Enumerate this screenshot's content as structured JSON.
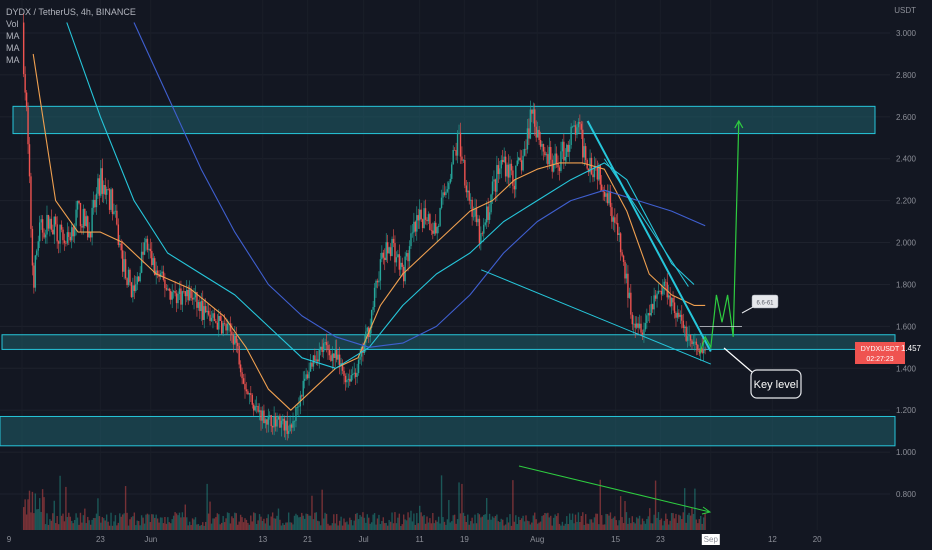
{
  "header": {
    "symbol_line": "DYDX / TetherUS, 4h, BINANCE",
    "indicators": [
      "Vol",
      "MA",
      "MA",
      "MA"
    ]
  },
  "price_axis": {
    "unit_label": "USDT",
    "current_price_label": "1.457",
    "current_symbol_label": "DYDXUSDT",
    "countdown_label": "02:27:23"
  },
  "annotations": {
    "key_level_label": "Key level",
    "small_box_label": "6.6-61"
  },
  "colors": {
    "background": "#131722",
    "zone_fill": "#1f5e6a",
    "zone_border": "#26c6da",
    "candle_up": "#26a69a",
    "candle_down": "#ef5350",
    "ma_fast": "#f0a050",
    "ma_mid": "#26c6da",
    "ma_slow": "#3f5fd0",
    "trendline": "#26c6da",
    "projection": "#2ecc40",
    "price_tag": "#ef5350"
  },
  "chart_data": {
    "type": "candlestick",
    "title": "DYDX / TetherUS, 4h, BINANCE",
    "ylabel": "USDT",
    "ylim": [
      0.7,
      3.05
    ],
    "y_ticks": [
      3.0,
      2.8,
      2.6,
      2.4,
      2.2,
      2.0,
      1.8,
      1.6,
      1.4,
      1.2,
      1.0,
      0.8
    ],
    "y_tick_labels": [
      "3.000",
      "2.800",
      "2.600",
      "2.400",
      "2.200",
      "2.000",
      "1.800",
      "1.600",
      "1.400",
      "1.200",
      "1.000",
      "0.800"
    ],
    "x_ticks": [
      {
        "label": "9",
        "t": 0
      },
      {
        "label": "23",
        "t": 14
      },
      {
        "label": "Jun",
        "t": 23
      },
      {
        "label": "13",
        "t": 43
      },
      {
        "label": "21",
        "t": 51
      },
      {
        "label": "Jul",
        "t": 61
      },
      {
        "label": "11",
        "t": 71
      },
      {
        "label": "19",
        "t": 79
      },
      {
        "label": "Aug",
        "t": 92
      },
      {
        "label": "15",
        "t": 106
      },
      {
        "label": "23",
        "t": 114
      },
      {
        "label": "Sep",
        "t": 123
      },
      {
        "label": "12",
        "t": 134
      },
      {
        "label": "20",
        "t": 142
      }
    ],
    "price_path": [
      {
        "t": 0,
        "p": 3.05
      },
      {
        "t": 1,
        "p": 2.5
      },
      {
        "t": 2,
        "p": 1.8
      },
      {
        "t": 3,
        "p": 2.05
      },
      {
        "t": 5,
        "p": 2.1
      },
      {
        "t": 8,
        "p": 2.0
      },
      {
        "t": 10,
        "p": 2.15
      },
      {
        "t": 12,
        "p": 2.05
      },
      {
        "t": 14,
        "p": 2.3
      },
      {
        "t": 16,
        "p": 2.2
      },
      {
        "t": 18,
        "p": 1.9
      },
      {
        "t": 20,
        "p": 1.75
      },
      {
        "t": 22,
        "p": 2.0
      },
      {
        "t": 24,
        "p": 1.85
      },
      {
        "t": 27,
        "p": 1.75
      },
      {
        "t": 30,
        "p": 1.75
      },
      {
        "t": 33,
        "p": 1.65
      },
      {
        "t": 36,
        "p": 1.6
      },
      {
        "t": 38,
        "p": 1.55
      },
      {
        "t": 40,
        "p": 1.3
      },
      {
        "t": 42,
        "p": 1.2
      },
      {
        "t": 44,
        "p": 1.15
      },
      {
        "t": 46,
        "p": 1.15
      },
      {
        "t": 48,
        "p": 1.1
      },
      {
        "t": 50,
        "p": 1.3
      },
      {
        "t": 52,
        "p": 1.45
      },
      {
        "t": 54,
        "p": 1.5
      },
      {
        "t": 56,
        "p": 1.45
      },
      {
        "t": 58,
        "p": 1.35
      },
      {
        "t": 60,
        "p": 1.4
      },
      {
        "t": 62,
        "p": 1.6
      },
      {
        "t": 64,
        "p": 1.9
      },
      {
        "t": 66,
        "p": 2.0
      },
      {
        "t": 68,
        "p": 1.85
      },
      {
        "t": 70,
        "p": 2.05
      },
      {
        "t": 72,
        "p": 2.15
      },
      {
        "t": 74,
        "p": 2.05
      },
      {
        "t": 76,
        "p": 2.3
      },
      {
        "t": 78,
        "p": 2.5
      },
      {
        "t": 80,
        "p": 2.2
      },
      {
        "t": 82,
        "p": 2.0
      },
      {
        "t": 84,
        "p": 2.25
      },
      {
        "t": 86,
        "p": 2.4
      },
      {
        "t": 88,
        "p": 2.3
      },
      {
        "t": 90,
        "p": 2.45
      },
      {
        "t": 91,
        "p": 2.65
      },
      {
        "t": 93,
        "p": 2.45
      },
      {
        "t": 95,
        "p": 2.35
      },
      {
        "t": 97,
        "p": 2.45
      },
      {
        "t": 99,
        "p": 2.55
      },
      {
        "t": 101,
        "p": 2.4
      },
      {
        "t": 103,
        "p": 2.35
      },
      {
        "t": 105,
        "p": 2.2
      },
      {
        "t": 107,
        "p": 1.95
      },
      {
        "t": 109,
        "p": 1.65
      },
      {
        "t": 111,
        "p": 1.6
      },
      {
        "t": 113,
        "p": 1.75
      },
      {
        "t": 115,
        "p": 1.8
      },
      {
        "t": 117,
        "p": 1.65
      },
      {
        "t": 119,
        "p": 1.55
      },
      {
        "t": 121,
        "p": 1.46
      },
      {
        "t": 122,
        "p": 1.47
      }
    ],
    "moving_averages": [
      {
        "key": "ma_fast",
        "points": [
          {
            "t": 2,
            "p": 2.9
          },
          {
            "t": 6,
            "p": 2.2
          },
          {
            "t": 10,
            "p": 2.05
          },
          {
            "t": 14,
            "p": 2.05
          },
          {
            "t": 18,
            "p": 2.0
          },
          {
            "t": 24,
            "p": 1.85
          },
          {
            "t": 30,
            "p": 1.78
          },
          {
            "t": 36,
            "p": 1.65
          },
          {
            "t": 40,
            "p": 1.5
          },
          {
            "t": 44,
            "p": 1.3
          },
          {
            "t": 48,
            "p": 1.2
          },
          {
            "t": 52,
            "p": 1.3
          },
          {
            "t": 56,
            "p": 1.4
          },
          {
            "t": 60,
            "p": 1.45
          },
          {
            "t": 64,
            "p": 1.7
          },
          {
            "t": 68,
            "p": 1.85
          },
          {
            "t": 72,
            "p": 1.95
          },
          {
            "t": 76,
            "p": 2.05
          },
          {
            "t": 80,
            "p": 2.15
          },
          {
            "t": 84,
            "p": 2.2
          },
          {
            "t": 88,
            "p": 2.3
          },
          {
            "t": 92,
            "p": 2.35
          },
          {
            "t": 96,
            "p": 2.38
          },
          {
            "t": 100,
            "p": 2.38
          },
          {
            "t": 104,
            "p": 2.35
          },
          {
            "t": 108,
            "p": 2.15
          },
          {
            "t": 112,
            "p": 1.85
          },
          {
            "t": 116,
            "p": 1.75
          },
          {
            "t": 120,
            "p": 1.7
          },
          {
            "t": 122,
            "p": 1.7
          }
        ]
      },
      {
        "key": "ma_mid",
        "points": [
          {
            "t": 8,
            "p": 3.05
          },
          {
            "t": 14,
            "p": 2.6
          },
          {
            "t": 20,
            "p": 2.2
          },
          {
            "t": 26,
            "p": 1.95
          },
          {
            "t": 32,
            "p": 1.85
          },
          {
            "t": 38,
            "p": 1.75
          },
          {
            "t": 44,
            "p": 1.6
          },
          {
            "t": 50,
            "p": 1.45
          },
          {
            "t": 56,
            "p": 1.4
          },
          {
            "t": 62,
            "p": 1.5
          },
          {
            "t": 68,
            "p": 1.7
          },
          {
            "t": 74,
            "p": 1.85
          },
          {
            "t": 80,
            "p": 1.95
          },
          {
            "t": 86,
            "p": 2.1
          },
          {
            "t": 92,
            "p": 2.2
          },
          {
            "t": 98,
            "p": 2.3
          },
          {
            "t": 104,
            "p": 2.38
          },
          {
            "t": 108,
            "p": 2.3
          },
          {
            "t": 112,
            "p": 2.1
          },
          {
            "t": 116,
            "p": 1.9
          },
          {
            "t": 120,
            "p": 1.8
          }
        ]
      },
      {
        "key": "ma_slow",
        "points": [
          {
            "t": 20,
            "p": 3.05
          },
          {
            "t": 26,
            "p": 2.7
          },
          {
            "t": 32,
            "p": 2.35
          },
          {
            "t": 38,
            "p": 2.05
          },
          {
            "t": 44,
            "p": 1.8
          },
          {
            "t": 50,
            "p": 1.65
          },
          {
            "t": 56,
            "p": 1.55
          },
          {
            "t": 62,
            "p": 1.5
          },
          {
            "t": 68,
            "p": 1.52
          },
          {
            "t": 74,
            "p": 1.6
          },
          {
            "t": 80,
            "p": 1.75
          },
          {
            "t": 86,
            "p": 1.95
          },
          {
            "t": 92,
            "p": 2.1
          },
          {
            "t": 98,
            "p": 2.2
          },
          {
            "t": 104,
            "p": 2.25
          },
          {
            "t": 110,
            "p": 2.2
          },
          {
            "t": 116,
            "p": 2.15
          },
          {
            "t": 122,
            "p": 2.08
          }
        ]
      }
    ],
    "zones": [
      {
        "name": "upper-zone",
        "low": 2.52,
        "high": 2.65
      },
      {
        "name": "key-level-zone",
        "low": 1.49,
        "high": 1.56
      },
      {
        "name": "lower-zone",
        "low": 1.03,
        "high": 1.17
      }
    ],
    "trendlines": [
      {
        "name": "descending-resistance",
        "from": {
          "t": 101,
          "p": 2.58
        },
        "to": {
          "t": 123,
          "p": 1.48
        },
        "weight": 2
      },
      {
        "name": "channel-upper",
        "from": {
          "t": 104,
          "p": 2.4
        },
        "to": {
          "t": 119,
          "p": 1.79
        },
        "weight": 1
      },
      {
        "name": "channel-lower",
        "from": {
          "t": 82,
          "p": 1.87
        },
        "to": {
          "t": 123,
          "p": 1.42
        },
        "weight": 1
      }
    ],
    "projection": [
      {
        "t": 121,
        "p": 1.47
      },
      {
        "t": 122,
        "p": 1.55
      },
      {
        "t": 123,
        "p": 1.5
      },
      {
        "t": 124,
        "p": 1.75
      },
      {
        "t": 125,
        "p": 1.62
      },
      {
        "t": 126,
        "p": 1.75
      },
      {
        "t": 127,
        "p": 1.55
      },
      {
        "t": 128,
        "p": 2.58
      }
    ],
    "current_price": 1.457
  }
}
